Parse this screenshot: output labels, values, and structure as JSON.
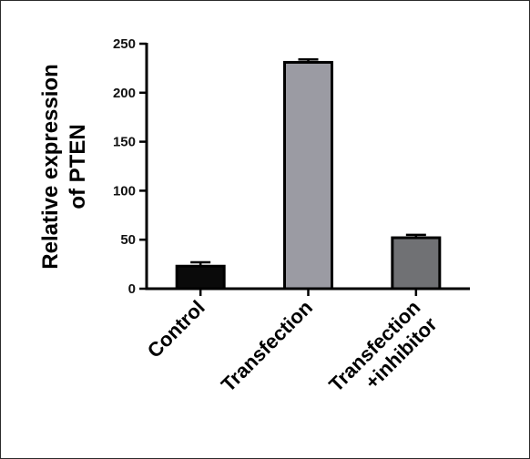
{
  "chart_data": {
    "type": "bar",
    "title": "",
    "ylabel_lines": [
      "Relative expression",
      "of PTEN"
    ],
    "xlabel": "",
    "categories": [
      {
        "lines": [
          "Control"
        ]
      },
      {
        "lines": [
          "Transfection"
        ]
      },
      {
        "lines": [
          "Transfection",
          "+inhibitor"
        ]
      }
    ],
    "values": [
      23,
      231,
      52
    ],
    "errors": [
      4,
      3,
      3
    ],
    "colors": [
      "#0a0a0a",
      "#9b9ba3",
      "#707174"
    ],
    "ylim": [
      0,
      250
    ],
    "yticks": [
      0,
      50,
      100,
      150,
      200,
      250
    ],
    "grid": false
  }
}
